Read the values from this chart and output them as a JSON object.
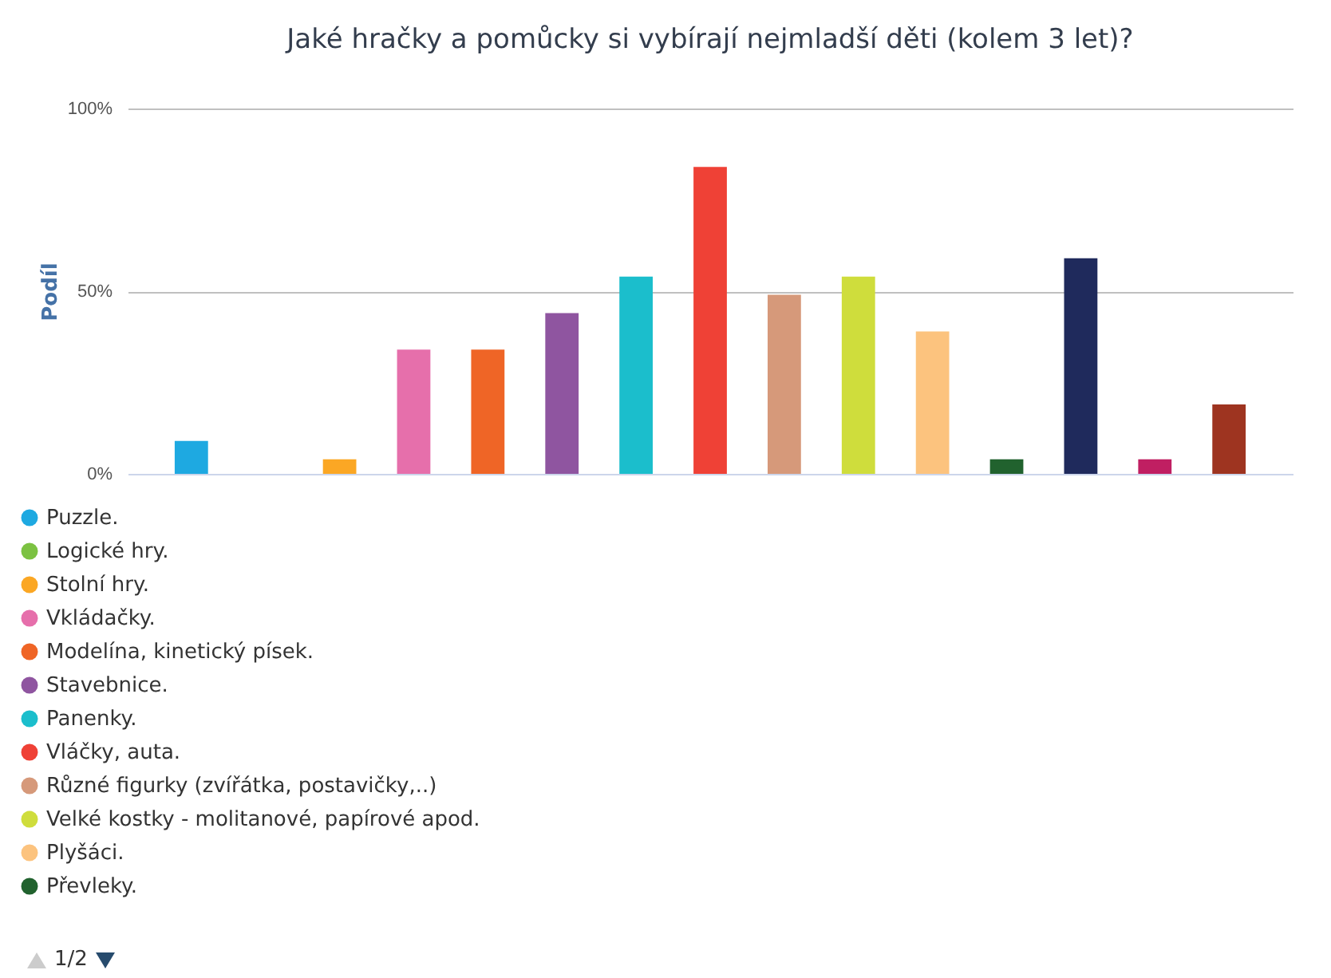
{
  "chart_data": {
    "type": "bar",
    "title": "Jaké hračky a pomůcky si vybírají nejmladší děti (kolem 3 let)?",
    "ylabel": "Podíl",
    "categories": [
      null
    ],
    "series": [
      {
        "name": "Puzzle.",
        "color": "#1ea9e1",
        "values": [
          9
        ]
      },
      {
        "name": "Logické hry.",
        "color": "#7cc242",
        "values": [
          0
        ]
      },
      {
        "name": "Stolní hry.",
        "color": "#fba724",
        "values": [
          4
        ]
      },
      {
        "name": "Vkládačky.",
        "color": "#e66fab",
        "values": [
          34
        ]
      },
      {
        "name": "Modelína, kinetický písek.",
        "color": "#ef6526",
        "values": [
          34
        ]
      },
      {
        "name": "Stavebnice.",
        "color": "#8f55a0",
        "values": [
          44
        ]
      },
      {
        "name": "Panenky.",
        "color": "#1bbecc",
        "values": [
          54
        ]
      },
      {
        "name": "Vláčky, auta.",
        "color": "#ef4136",
        "values": [
          84
        ]
      },
      {
        "name": "Různé figurky (zvířátka, postavičky,..)",
        "color": "#d6997a",
        "values": [
          49
        ]
      },
      {
        "name": "Velké kostky - molitanové, papírové apod.",
        "color": "#cfdd3c",
        "values": [
          54
        ]
      },
      {
        "name": "Plyšáci.",
        "color": "#fcc37e",
        "values": [
          39
        ]
      },
      {
        "name": "Převleky.",
        "color": "#21622e",
        "values": [
          4
        ]
      },
      {
        "color": "#1f2a5c",
        "values": [
          59
        ]
      },
      {
        "color": "#c01f62",
        "values": [
          4
        ]
      },
      {
        "color": "#9e3420",
        "values": [
          19
        ]
      }
    ],
    "ylim": [
      0,
      100
    ],
    "yticks": [
      {
        "value": 0,
        "label": "0%"
      },
      {
        "value": 50,
        "label": "50%"
      },
      {
        "value": 100,
        "label": "100%"
      }
    ],
    "grid": "y",
    "legend": "bottom",
    "tick_labels": "y",
    "annotations": [
      "1/2"
    ]
  }
}
